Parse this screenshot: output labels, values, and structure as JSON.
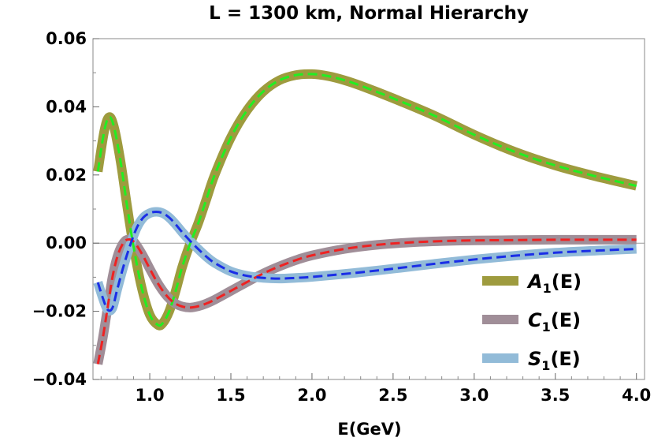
{
  "chart_data": {
    "type": "line",
    "title": "L = 1300 km, Normal Hierarchy",
    "xlabel": "E(GeV)",
    "ylabel": "",
    "xlim": [
      0.65,
      4.05
    ],
    "ylim": [
      -0.04,
      0.06
    ],
    "xticks": [
      "1.0",
      "1.5",
      "2.0",
      "2.5",
      "3.0",
      "3.5",
      "4.0"
    ],
    "xtick_values": [
      1.0,
      1.5,
      2.0,
      2.5,
      3.0,
      3.5,
      4.0
    ],
    "yticks": [
      "−0.04",
      "−0.02",
      "0.00",
      "0.02",
      "0.04",
      "0.06"
    ],
    "ytick_values": [
      -0.04,
      -0.02,
      0.0,
      0.02,
      0.04,
      0.06
    ],
    "legend_position": "bottom-right",
    "series": [
      {
        "name": "A1(E)",
        "legend_main": "A",
        "legend_sub": "1",
        "legend_tail": "(E)",
        "color": "#9e9b3e",
        "dashed_color": "#22ee22",
        "x": [
          0.68,
          0.72,
          0.75,
          0.78,
          0.82,
          0.86,
          0.9,
          0.95,
          1.0,
          1.05,
          1.08,
          1.12,
          1.16,
          1.2,
          1.25,
          1.3,
          1.35,
          1.4,
          1.5,
          1.6,
          1.7,
          1.8,
          1.9,
          2.0,
          2.1,
          2.2,
          2.3,
          2.5,
          2.75,
          3.0,
          3.25,
          3.5,
          3.75,
          4.0
        ],
        "y": [
          0.021,
          0.033,
          0.037,
          0.034,
          0.024,
          0.011,
          -0.001,
          -0.013,
          -0.021,
          -0.024,
          -0.0235,
          -0.02,
          -0.014,
          -0.007,
          0.0,
          0.006,
          0.013,
          0.02,
          0.031,
          0.039,
          0.0445,
          0.0478,
          0.0493,
          0.0496,
          0.049,
          0.0478,
          0.0462,
          0.0425,
          0.0375,
          0.0318,
          0.0268,
          0.0228,
          0.0196,
          0.0168
        ]
      },
      {
        "name": "C1(E)",
        "legend_main": "C",
        "legend_sub": "1",
        "legend_tail": "(E)",
        "color": "#a08e98",
        "dashed_color": "#ee2222",
        "x": [
          0.68,
          0.71,
          0.74,
          0.77,
          0.8,
          0.83,
          0.86,
          0.9,
          0.95,
          1.0,
          1.05,
          1.1,
          1.15,
          1.2,
          1.25,
          1.3,
          1.35,
          1.4,
          1.5,
          1.6,
          1.7,
          1.8,
          1.9,
          2.0,
          2.2,
          2.4,
          2.6,
          2.8,
          3.0,
          3.25,
          3.5,
          3.75,
          4.0
        ],
        "y": [
          -0.0355,
          -0.028,
          -0.019,
          -0.01,
          -0.004,
          -0.0005,
          0.001,
          0.0005,
          -0.003,
          -0.0075,
          -0.0118,
          -0.0152,
          -0.0175,
          -0.0186,
          -0.0189,
          -0.0185,
          -0.0177,
          -0.0166,
          -0.014,
          -0.0114,
          -0.0089,
          -0.0068,
          -0.005,
          -0.0036,
          -0.0017,
          -0.0005,
          0.0002,
          0.0006,
          0.0008,
          0.0009,
          0.001,
          0.001,
          0.001
        ]
      },
      {
        "name": "S1(E)",
        "legend_main": "S",
        "legend_sub": "1",
        "legend_tail": "(E)",
        "color": "#92bbd8",
        "dashed_color": "#1a2ee6",
        "x": [
          0.68,
          0.71,
          0.74,
          0.77,
          0.8,
          0.84,
          0.88,
          0.92,
          0.96,
          1.0,
          1.04,
          1.08,
          1.12,
          1.16,
          1.2,
          1.25,
          1.3,
          1.35,
          1.4,
          1.5,
          1.6,
          1.7,
          1.8,
          1.9,
          2.0,
          2.25,
          2.5,
          2.75,
          3.0,
          3.25,
          3.5,
          3.75,
          4.0
        ],
        "y": [
          -0.0115,
          -0.016,
          -0.0195,
          -0.019,
          -0.0135,
          -0.0065,
          -0.0005,
          0.0045,
          0.0075,
          0.0088,
          0.0092,
          0.0088,
          0.0075,
          0.0055,
          0.0032,
          0.0006,
          -0.0018,
          -0.004,
          -0.0058,
          -0.0083,
          -0.0096,
          -0.0102,
          -0.0104,
          -0.0102,
          -0.0099,
          -0.0088,
          -0.0075,
          -0.0061,
          -0.0048,
          -0.0037,
          -0.0028,
          -0.0022,
          -0.0017
        ]
      }
    ]
  }
}
